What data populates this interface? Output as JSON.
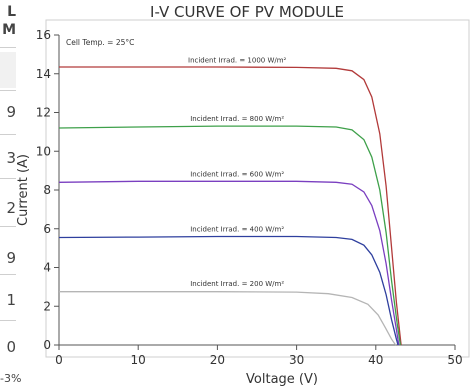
{
  "left_strip": {
    "header_line1": "L",
    "header_line2": "M",
    "cells": [
      "9",
      "3",
      "2",
      "9",
      "1",
      "0"
    ],
    "footer": "-3%"
  },
  "chart_data": {
    "type": "line",
    "title": "I-V CURVE OF PV MODULE",
    "xlabel": "Voltage (V)",
    "ylabel": "Current (A)",
    "xlim": [
      0,
      50
    ],
    "ylim": [
      0,
      16
    ],
    "xticks": [
      0,
      10,
      20,
      30,
      40,
      50
    ],
    "yticks": [
      0,
      2,
      4,
      6,
      8,
      10,
      12,
      14,
      16
    ],
    "grid": false,
    "annotation": "Cell Temp. = 25°C",
    "series": [
      {
        "name": "Incident Irrad. = 1000 W/m²",
        "color": "#b23a3a",
        "values": [
          [
            0,
            14.35
          ],
          [
            10,
            14.35
          ],
          [
            20,
            14.35
          ],
          [
            30,
            14.33
          ],
          [
            35,
            14.28
          ],
          [
            37,
            14.15
          ],
          [
            38.5,
            13.7
          ],
          [
            39.5,
            12.8
          ],
          [
            40.5,
            10.9
          ],
          [
            41.3,
            8.2
          ],
          [
            42.0,
            5.0
          ],
          [
            42.6,
            2.2
          ],
          [
            43.2,
            0
          ]
        ]
      },
      {
        "name": "Incident Irrad. = 800 W/m²",
        "color": "#3ea04a",
        "values": [
          [
            0,
            11.2
          ],
          [
            10,
            11.25
          ],
          [
            20,
            11.3
          ],
          [
            30,
            11.3
          ],
          [
            35,
            11.25
          ],
          [
            37,
            11.1
          ],
          [
            38.5,
            10.6
          ],
          [
            39.5,
            9.7
          ],
          [
            40.5,
            8.0
          ],
          [
            41.3,
            5.8
          ],
          [
            42.0,
            3.3
          ],
          [
            42.7,
            1.1
          ],
          [
            43.1,
            0
          ]
        ]
      },
      {
        "name": "Incident Irrad. = 600 W/m²",
        "color": "#7a3fc0",
        "values": [
          [
            0,
            8.4
          ],
          [
            10,
            8.45
          ],
          [
            20,
            8.45
          ],
          [
            30,
            8.45
          ],
          [
            35,
            8.4
          ],
          [
            37,
            8.3
          ],
          [
            38.5,
            7.9
          ],
          [
            39.5,
            7.2
          ],
          [
            40.5,
            5.9
          ],
          [
            41.3,
            4.2
          ],
          [
            42.0,
            2.3
          ],
          [
            42.6,
            0.8
          ],
          [
            42.9,
            0
          ]
        ]
      },
      {
        "name": "Incident Irrad. = 400 W/m²",
        "color": "#2e3f9e",
        "values": [
          [
            0,
            5.55
          ],
          [
            10,
            5.57
          ],
          [
            20,
            5.6
          ],
          [
            30,
            5.6
          ],
          [
            35,
            5.55
          ],
          [
            37,
            5.45
          ],
          [
            38.5,
            5.15
          ],
          [
            39.5,
            4.65
          ],
          [
            40.5,
            3.75
          ],
          [
            41.3,
            2.6
          ],
          [
            42.0,
            1.3
          ],
          [
            42.6,
            0.3
          ],
          [
            42.8,
            0
          ]
        ]
      },
      {
        "name": "Incident Irrad. = 200 W/m²",
        "color": "#b5b5b5",
        "values": [
          [
            0,
            2.75
          ],
          [
            10,
            2.75
          ],
          [
            20,
            2.75
          ],
          [
            30,
            2.73
          ],
          [
            34,
            2.65
          ],
          [
            37,
            2.45
          ],
          [
            39,
            2.1
          ],
          [
            40.3,
            1.55
          ],
          [
            41.2,
            0.9
          ],
          [
            42.0,
            0.3
          ],
          [
            42.5,
            0
          ]
        ]
      }
    ]
  }
}
